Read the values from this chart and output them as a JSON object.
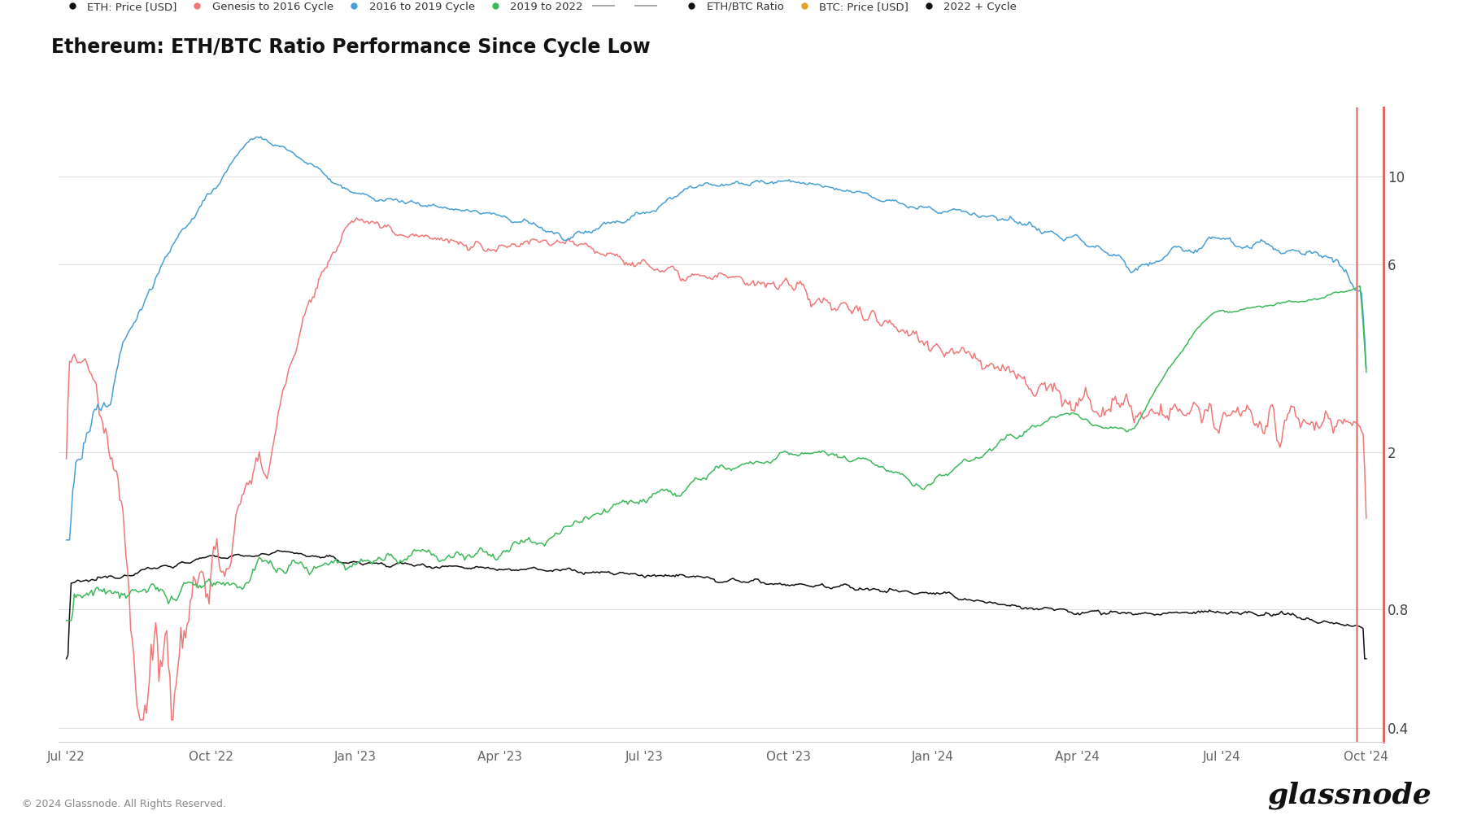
{
  "title": "Ethereum: ETH/BTC Ratio Performance Since Cycle Low",
  "background_color": "#ffffff",
  "yticks": [
    0.4,
    0.8,
    2,
    6,
    10
  ],
  "ylim": [
    0.37,
    15
  ],
  "right_axis_color": "#e05c5c",
  "watermark": "© 2024 Glassnode. All Rights Reserved.",
  "glassnode_text": "glassnode",
  "x_tick_labels": [
    "Jul '22",
    "Oct '22",
    "Jan '23",
    "Apr '23",
    "Jul '23",
    "Oct '23",
    "Jan '24",
    "Apr '24",
    "Jul '24",
    "Oct '24"
  ],
  "n_points": 830
}
